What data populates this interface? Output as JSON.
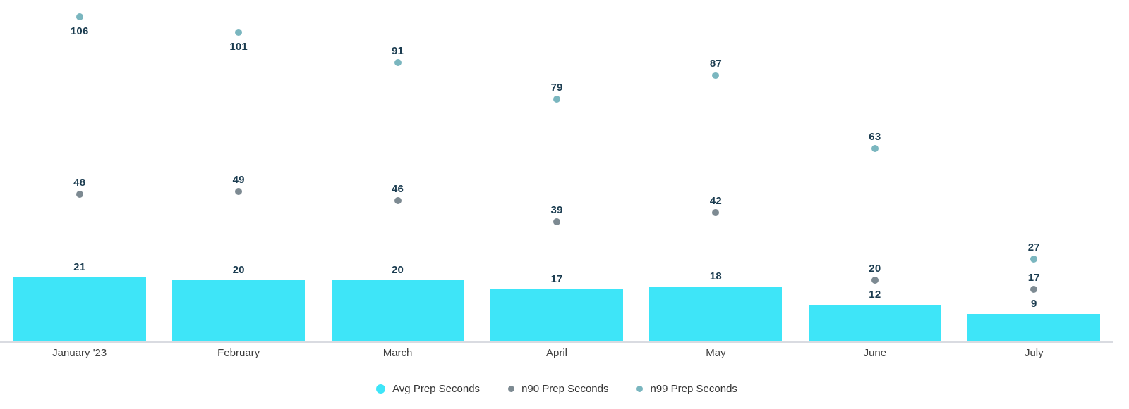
{
  "chart_data": {
    "type": "bar",
    "subtype": "bar-with-scatter-points",
    "title": "",
    "xlabel": "",
    "ylabel": "",
    "categories": [
      "January '23",
      "February",
      "March",
      "April",
      "May",
      "June",
      "July"
    ],
    "series": [
      {
        "name": "Avg Prep Seconds",
        "render": "bar",
        "color": "#3ee5f8",
        "values": [
          21,
          20,
          20,
          17,
          18,
          12,
          9
        ]
      },
      {
        "name": "n90 Prep Seconds",
        "render": "scatter",
        "color": "#7d8a92",
        "values": [
          48,
          49,
          46,
          39,
          42,
          20,
          17
        ]
      },
      {
        "name": "n99 Prep Seconds",
        "render": "scatter",
        "color": "#7ab6bf",
        "values": [
          106,
          101,
          91,
          79,
          87,
          63,
          27
        ]
      }
    ],
    "ylim": [
      0,
      112
    ],
    "grid": false,
    "y_axis_visible": false,
    "x_axis_line_color": "#d9dbe1",
    "value_labels_visible": true,
    "value_label_color": "#1b3c50",
    "category_label_color": "#3d3d3d",
    "legend_position": "bottom-center",
    "legend_text_color": "#353535",
    "background_color": "#ffffff"
  }
}
